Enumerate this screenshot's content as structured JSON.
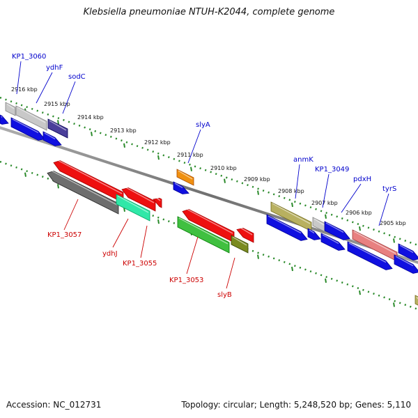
{
  "title": "Klebsiella pneumoniae NTUH-K2044, complete genome",
  "footer": {
    "accession": "Accession: NC_012731",
    "topology": "Topology: circular; Length: 5,248,520 bp; Genes: 5,110"
  },
  "colors": {
    "forward_label": "#0000cc",
    "reverse_label": "#cc0000",
    "backbone": "#808080",
    "tick_dots": "#2a8a2a"
  },
  "kbp_ticks": [
    "2916 kbp",
    "2915 kbp",
    "2914 kbp",
    "2913 kbp",
    "2912 kbp",
    "2911 kbp",
    "2910 kbp",
    "2909 kbp",
    "2908 kbp",
    "2907 kbp",
    "2906 kbp",
    "2905 kbp"
  ],
  "forward_gene_labels": [
    "KP1_3060",
    "ydhF",
    "sodC",
    "slyA",
    "anmK",
    "KP1_3049",
    "pdxH",
    "tyrS"
  ],
  "reverse_gene_labels": [
    "KP1_3057",
    "ydhJ",
    "KP1_3055",
    "KP1_3053",
    "slyB"
  ],
  "feature_colors": {
    "gray_light": "#c8c8c8",
    "gray_dark": "#6e6e6e",
    "blue": "#1010e0",
    "navy": "#4a3f9a",
    "red": "#ee1010",
    "teal": "#30e8a8",
    "green": "#40c040",
    "olive": "#7a8a20",
    "orange": "#f09010",
    "khaki": "#b8b060",
    "salmon": "#e88080"
  }
}
